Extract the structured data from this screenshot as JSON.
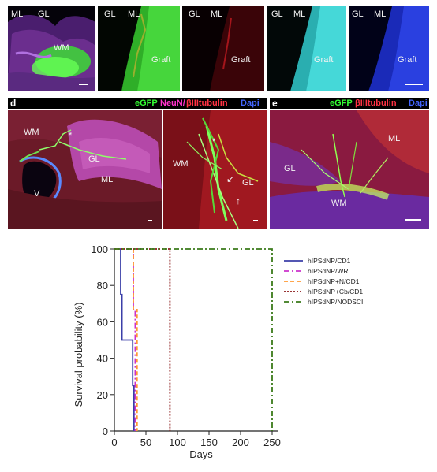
{
  "top_row": {
    "panel1": {
      "ml": "ML",
      "gl": "GL",
      "wm": "WM"
    },
    "panel2": {
      "gl": "GL",
      "ml": "ML",
      "graft": "Graft"
    },
    "panel3": {
      "gl": "GL",
      "ml": "ML",
      "graft": "Graft"
    },
    "panel4": {
      "gl": "GL",
      "ml": "ML",
      "graft": "Graft"
    },
    "panel5": {
      "gl": "GL",
      "ml": "ML",
      "graft": "Graft"
    }
  },
  "panel_d": {
    "letter": "d",
    "stain_egfp": "eGFP",
    "stain_neun": "NeuN/",
    "stain_btub": "βIIItubulin",
    "stain_dapi": "Dapi",
    "left": {
      "wm": "WM",
      "star": "*",
      "gl": "GL",
      "ml": "ML",
      "v": "V"
    },
    "right": {
      "star": "*",
      "wm": "WM",
      "gl": "GL"
    }
  },
  "panel_e": {
    "letter": "e",
    "stain_egfp": "eGFP",
    "stain_btub": "βIIItubulin",
    "stain_dapi": "Dapi",
    "ml": "ML",
    "gl": "GL",
    "wm": "WM"
  },
  "chart_data": {
    "type": "line",
    "subtype": "kaplan-meier survival",
    "xlabel": "Days",
    "ylabel": "Survival probability (%)",
    "xlim": [
      0,
      260
    ],
    "ylim": [
      0,
      100
    ],
    "xticks": [
      0,
      50,
      100,
      150,
      200,
      250
    ],
    "yticks": [
      0,
      20,
      40,
      60,
      80,
      100
    ],
    "legend_position": "right",
    "series": [
      {
        "name": "hIPSdNP/CD1",
        "color": "#3b3fa8",
        "dash": "solid",
        "x": [
          0,
          10,
          10,
          12,
          12,
          29,
          29,
          31,
          31
        ],
        "y": [
          100,
          100,
          75,
          75,
          50,
          50,
          25,
          25,
          0
        ]
      },
      {
        "name": "hIPSdNP/WR",
        "color": "#cc33cc",
        "dash": "dashdot",
        "x": [
          0,
          30,
          30,
          33,
          33
        ],
        "y": [
          100,
          100,
          66.7,
          66.7,
          0
        ]
      },
      {
        "name": "hIPSdNP+N/CD1",
        "color": "#ff9933",
        "dash": "dashed",
        "x": [
          0,
          30,
          30,
          36,
          36
        ],
        "y": [
          100,
          100,
          66.7,
          66.7,
          0
        ]
      },
      {
        "name": "hIPSdNP+Cb/CD1",
        "color": "#8b1a1a",
        "dash": "dotted",
        "x": [
          0,
          88,
          88
        ],
        "y": [
          100,
          100,
          0
        ]
      },
      {
        "name": "hIPSdNP/NODSCI",
        "color": "#3a7a1a",
        "dash": "dashdot",
        "x": [
          0,
          250,
          250
        ],
        "y": [
          100,
          100,
          0
        ]
      }
    ]
  }
}
